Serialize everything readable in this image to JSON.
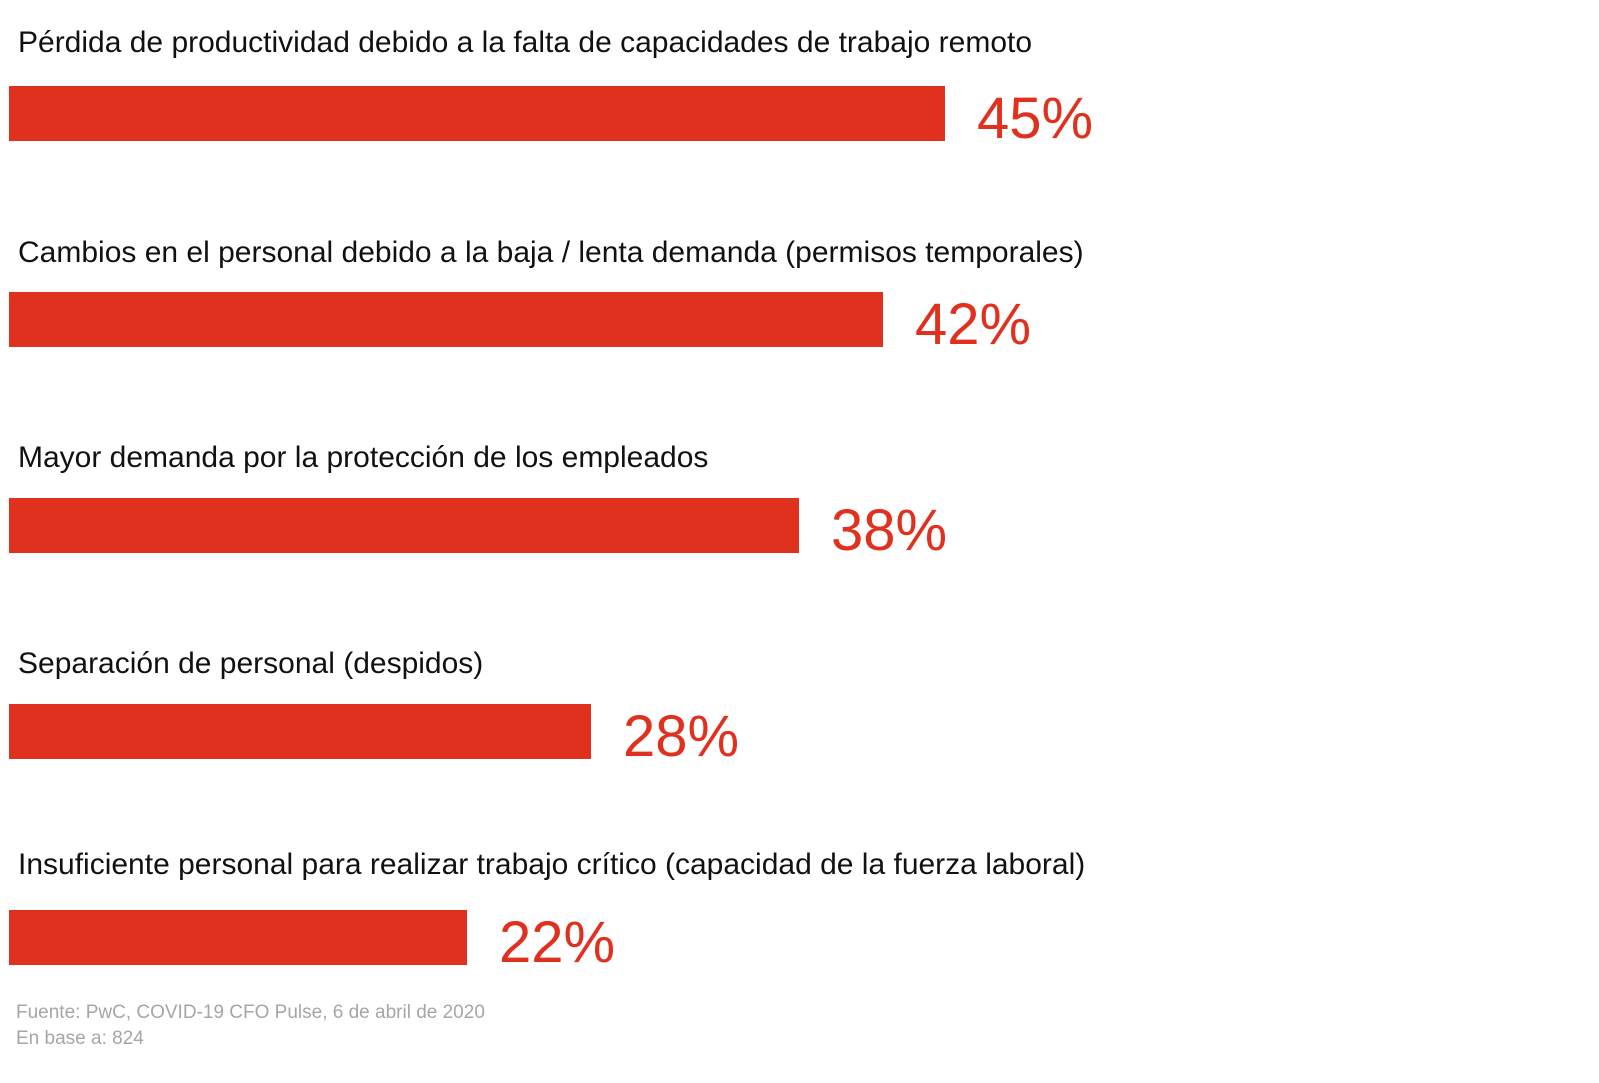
{
  "chart_data": {
    "type": "bar",
    "orientation": "horizontal",
    "categories": [
      "Pérdida de productividad debido a la falta de capacidades de trabajo remoto",
      "Cambios en el personal debido a la baja / lenta demanda (permisos temporales)",
      "Mayor demanda por la protección de los empleados",
      "Separación de personal (despidos)",
      "Insuficiente personal para realizar trabajo crítico (capacidad de la fuerza laboral)"
    ],
    "values": [
      45,
      42,
      38,
      28,
      22
    ],
    "value_labels": [
      "45%",
      "42%",
      "38%",
      "28%",
      "22%"
    ],
    "unit": "%",
    "bar_color": "#E0301E",
    "label_color": "#E0301E",
    "grid": false,
    "axes_visible": false
  },
  "footer": {
    "source": "Fuente: PwC, COVID-19 CFO Pulse, 6 de abril de 2020",
    "base": "En base a: 824"
  }
}
